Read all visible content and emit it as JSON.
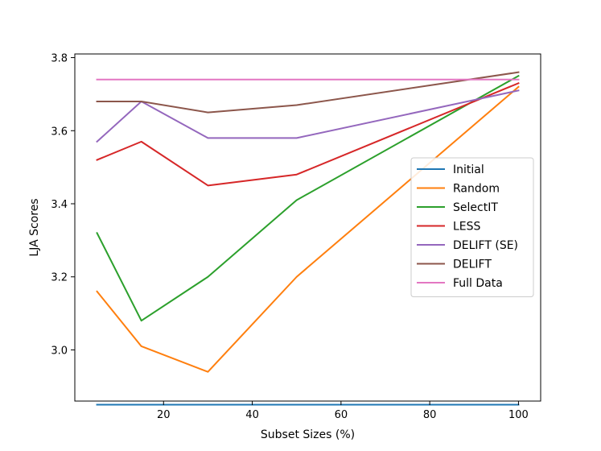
{
  "chart_data": {
    "type": "line",
    "title": "",
    "xlabel": "Subset Sizes (%)",
    "ylabel": "LJA Scores",
    "xlim": [
      0,
      105
    ],
    "ylim": [
      2.86,
      3.81
    ],
    "xticks": [
      20,
      40,
      60,
      80,
      100
    ],
    "yticks": [
      3.0,
      3.2,
      3.4,
      3.6,
      3.8
    ],
    "xtick_labels": [
      "20",
      "40",
      "60",
      "80",
      "100"
    ],
    "ytick_labels": [
      "3.0",
      "3.2",
      "3.4",
      "3.6",
      "3.8"
    ],
    "grid": false,
    "legend_position": "center-right",
    "x": [
      5,
      15,
      30,
      50,
      100
    ],
    "series": [
      {
        "name": "Initial",
        "color": "#1f77b4",
        "values": [
          2.85,
          2.85,
          2.85,
          2.85,
          2.85
        ]
      },
      {
        "name": "Random",
        "color": "#ff7f0e",
        "values": [
          3.16,
          3.01,
          2.94,
          3.2,
          3.72
        ]
      },
      {
        "name": "SelectIT",
        "color": "#2ca02c",
        "values": [
          3.32,
          3.08,
          3.2,
          3.41,
          3.75
        ]
      },
      {
        "name": "LESS",
        "color": "#d62728",
        "values": [
          3.52,
          3.57,
          3.45,
          3.48,
          3.73
        ]
      },
      {
        "name": "DELIFT (SE)",
        "color": "#9467bd",
        "values": [
          3.57,
          3.68,
          3.58,
          3.58,
          3.71
        ]
      },
      {
        "name": "DELIFT",
        "color": "#8c564b",
        "values": [
          3.68,
          3.68,
          3.65,
          3.67,
          3.76
        ]
      },
      {
        "name": "Full Data",
        "color": "#e377c2",
        "values": [
          3.74,
          3.74,
          3.74,
          3.74,
          3.74
        ]
      }
    ]
  }
}
